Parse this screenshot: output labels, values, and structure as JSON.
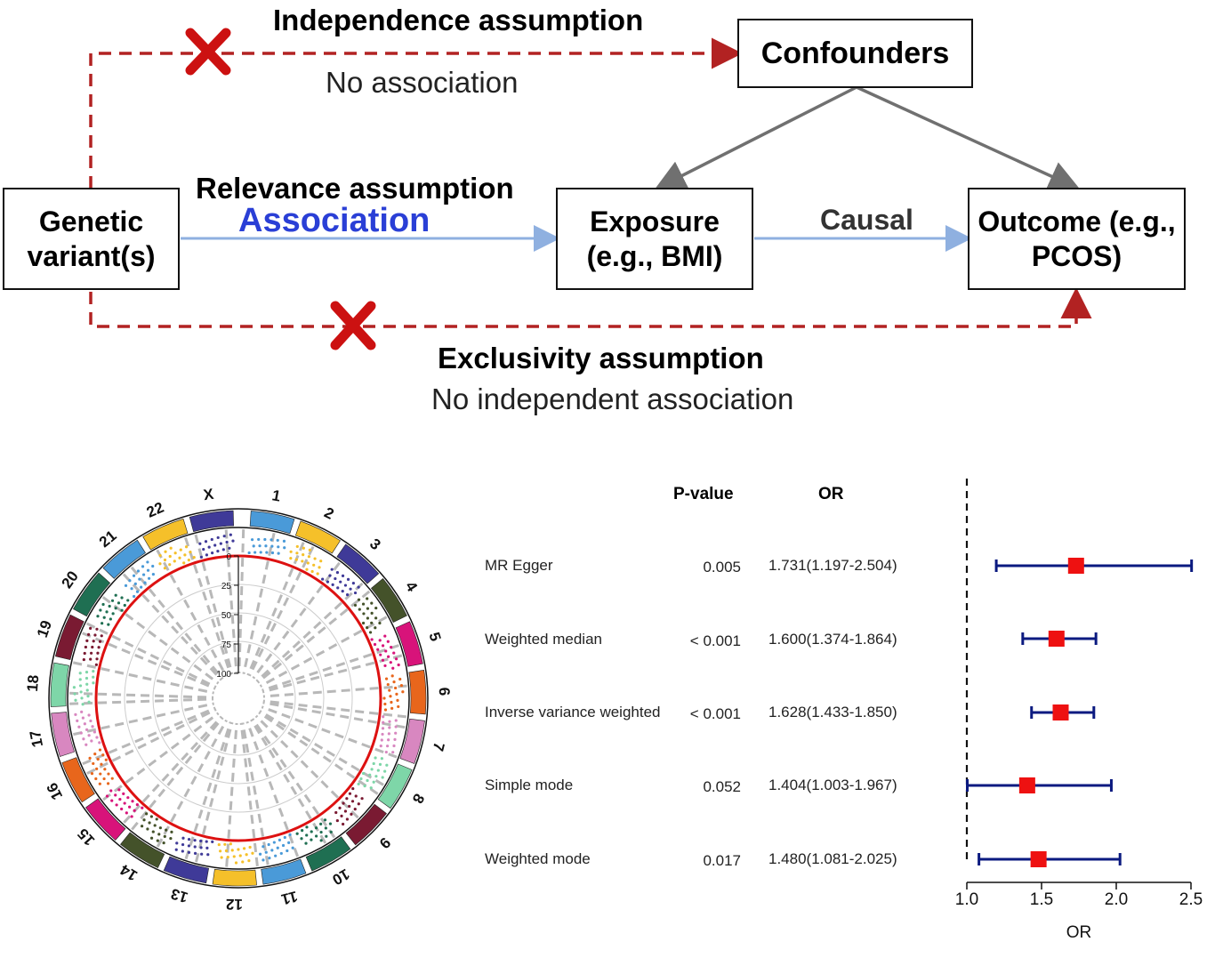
{
  "diagram": {
    "boxes": {
      "genetic": "Genetic variant(s)",
      "confounders": "Confounders",
      "exposure": "Exposure (e.g., BMI)",
      "outcome": "Outcome (e.g., PCOS)"
    },
    "labels": {
      "independence_title": "Independence assumption",
      "independence_sub": "No association",
      "relevance_title": "Relevance assumption",
      "relevance_sub": "Association",
      "causal": "Causal",
      "exclusivity_title": "Exclusivity assumption",
      "exclusivity_sub": "No independent association"
    },
    "colors": {
      "dashed_red": "#b22222",
      "cross_red": "#cc1111",
      "arrow_blue": "#8fb0e0",
      "association_blue": "#2a3fd6",
      "arrow_gray": "#707070"
    }
  },
  "circos": {
    "chromosomes": [
      "1",
      "2",
      "3",
      "4",
      "5",
      "6",
      "7",
      "8",
      "9",
      "10",
      "11",
      "12",
      "13",
      "14",
      "15",
      "16",
      "17",
      "18",
      "19",
      "20",
      "21",
      "22",
      "X"
    ],
    "colors": [
      "#4a9ad8",
      "#f5c02a",
      "#3f3a98",
      "#44522a",
      "#d8137a",
      "#e8661c",
      "#d887c0",
      "#7ed6a8",
      "#7a1a32",
      "#1f6f52",
      "#4a9ad8",
      "#f5c02a",
      "#3f3a98",
      "#44522a",
      "#d8137a",
      "#e8661c",
      "#d887c0",
      "#7ed6a8",
      "#7a1a32",
      "#1f6f52",
      "#4a9ad8",
      "#f5c02a",
      "#3f3a98"
    ],
    "scale_ticks": [
      "0",
      "25",
      "50",
      "75",
      "100"
    ],
    "threshold_color": "#dd1111"
  },
  "forest": {
    "headers": {
      "pvalue": "P-value",
      "or": "OR"
    },
    "rows": [
      {
        "method": "MR Egger",
        "pvalue": "0.005",
        "or_text": "1.731(1.197-2.504)"
      },
      {
        "method": "Weighted median",
        "pvalue": "< 0.001",
        "or_text": "1.600(1.374-1.864)"
      },
      {
        "method": "Inverse variance weighted",
        "pvalue": "< 0.001",
        "or_text": "1.628(1.433-1.850)"
      },
      {
        "method": "Simple mode",
        "pvalue": "0.052",
        "or_text": "1.404(1.003-1.967)"
      },
      {
        "method": "Weighted mode",
        "pvalue": "0.017",
        "or_text": "1.480(1.081-2.025)"
      }
    ],
    "x_label": "OR",
    "x_ticks": [
      "1.0",
      "1.5",
      "2.0",
      "2.5"
    ],
    "colors": {
      "point": "#ee1111",
      "ci": "#0b1a80"
    }
  },
  "chart_data": {
    "type": "scatter",
    "categories": [
      "MR Egger",
      "Weighted median",
      "Inverse variance weighted",
      "Simple mode",
      "Weighted mode"
    ],
    "or": [
      1.731,
      1.6,
      1.628,
      1.404,
      1.48
    ],
    "lower": [
      1.197,
      1.374,
      1.433,
      1.003,
      1.081
    ],
    "upper": [
      2.504,
      1.864,
      1.85,
      1.967,
      2.025
    ],
    "reference_line": 1.0,
    "xlim": [
      1.0,
      2.5
    ],
    "xlabel": "OR"
  }
}
